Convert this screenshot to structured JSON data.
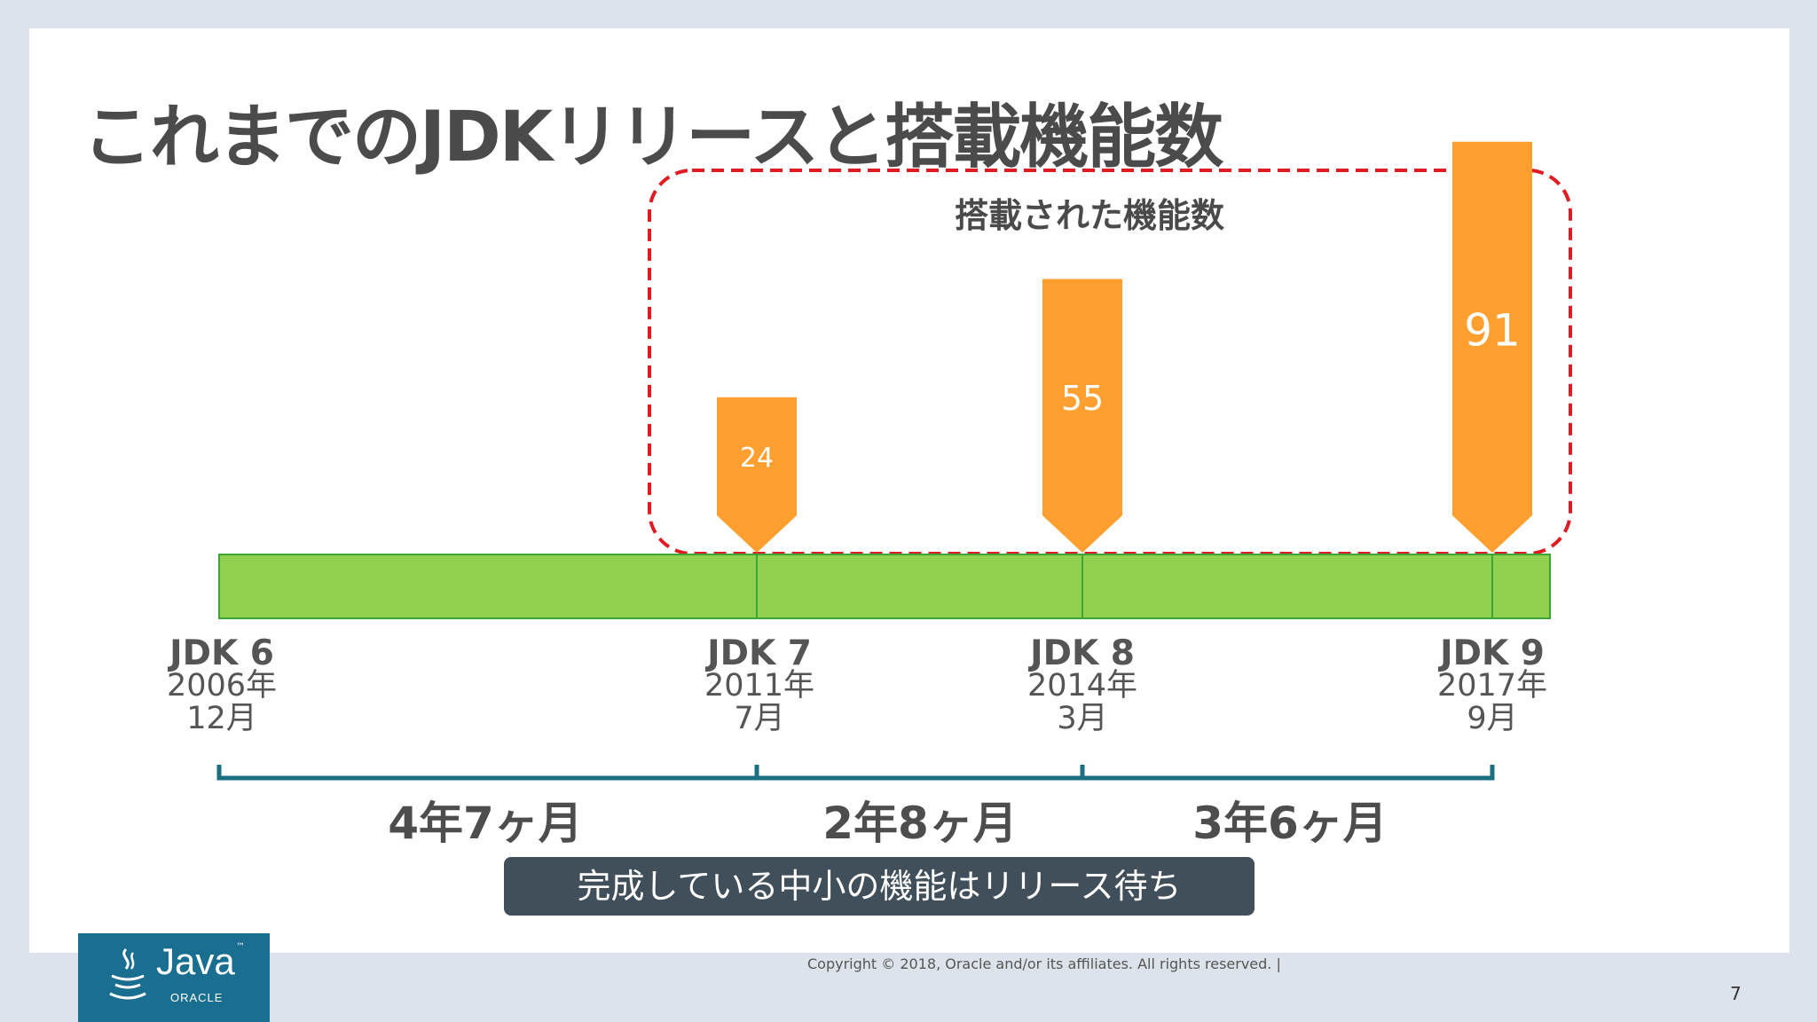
{
  "title": "これまでのJDKリリースと搭載機能数",
  "frame_caption": "搭載された機能数",
  "releases": [
    {
      "name": "JDK 6",
      "year": "2006年",
      "month": "12月",
      "features": ""
    },
    {
      "name": "JDK 7",
      "year": "2011年",
      "month": "7月",
      "features": "24"
    },
    {
      "name": "JDK 8",
      "year": "2014年",
      "month": "3月",
      "features": "55"
    },
    {
      "name": "JDK 9",
      "year": "2017年",
      "month": "9月",
      "features": "91"
    }
  ],
  "intervals": [
    "4年7ヶ月",
    "2年8ヶ月",
    "3年6ヶ月"
  ],
  "note": "完成している中小の機能はリリース待ち",
  "footer": {
    "copyright": "Copyright © 2018, Oracle and/or its affiliates. All rights reserved.  |",
    "page_number": "7"
  },
  "logo": {
    "word": "Java",
    "tm": "™",
    "company": "ORACLE"
  },
  "colors": {
    "timeline": "#92d050",
    "timeline_border": "#3aa635",
    "marker": "#ff9f2f",
    "frame": "#e01b22",
    "bracket": "#1a6f80",
    "note_bg": "#404f5a"
  },
  "chart_data": {
    "type": "bar",
    "categories": [
      "JDK 7",
      "JDK 8",
      "JDK 9"
    ],
    "values": [
      24,
      55,
      91
    ],
    "title": "搭載された機能数"
  }
}
